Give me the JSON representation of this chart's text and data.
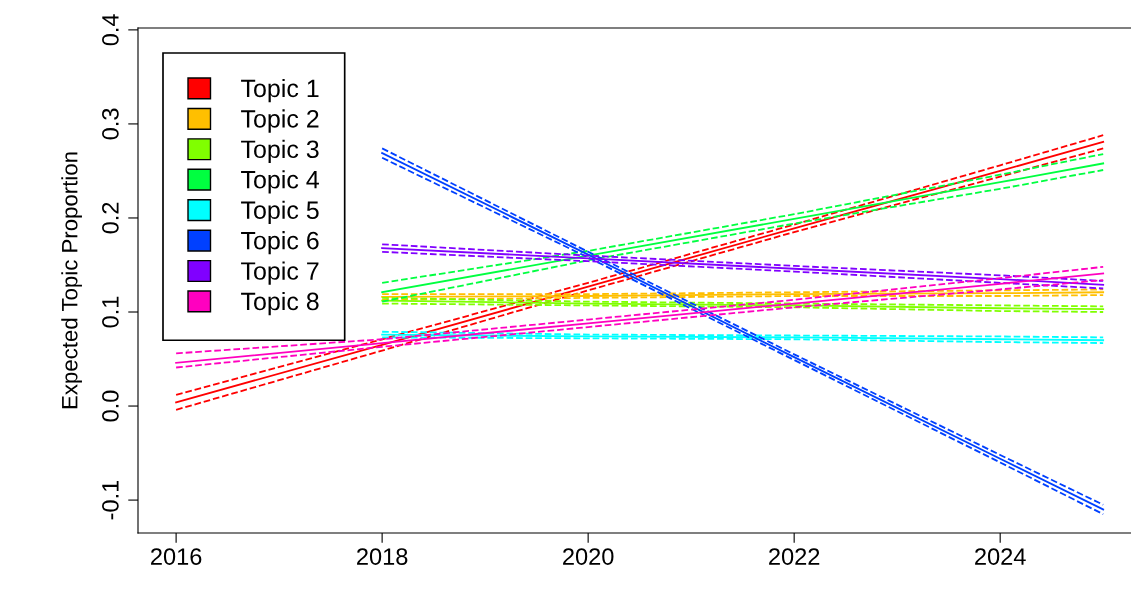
{
  "chart_data": {
    "type": "line",
    "ylabel": "Expected Topic Proportion",
    "x": [
      2016,
      2018,
      2020,
      2022,
      2024,
      2025
    ],
    "series": [
      {
        "name": "Topic 1",
        "color": "#ff0000",
        "values": [
          0.004,
          0.065,
          0.127,
          0.189,
          0.25,
          0.281
        ]
      },
      {
        "color": "#ff0000",
        "line_style": "dashed",
        "values": [
          -0.004,
          0.059,
          0.123,
          0.185,
          0.244,
          0.274
        ]
      },
      {
        "color": "#ff0000",
        "line_style": "dashed",
        "values": [
          0.012,
          0.071,
          0.131,
          0.193,
          0.256,
          0.288
        ]
      },
      {
        "name": "Topic 2",
        "color": "#ffbf00",
        "values": [
          null,
          0.116,
          0.117,
          0.119,
          0.12,
          0.121
        ]
      },
      {
        "color": "#ffbf00",
        "line_style": "dashed",
        "values": [
          null,
          0.113,
          0.115,
          0.117,
          0.117,
          0.118
        ]
      },
      {
        "color": "#ffbf00",
        "line_style": "dashed",
        "values": [
          null,
          0.119,
          0.119,
          0.121,
          0.123,
          0.124
        ]
      },
      {
        "name": "Topic 3",
        "color": "#80ff00",
        "values": [
          null,
          0.112,
          0.109,
          0.107,
          0.104,
          0.103
        ]
      },
      {
        "color": "#80ff00",
        "line_style": "dashed",
        "values": [
          null,
          0.109,
          0.107,
          0.105,
          0.101,
          0.1
        ]
      },
      {
        "color": "#80ff00",
        "line_style": "dashed",
        "values": [
          null,
          0.115,
          0.111,
          0.109,
          0.107,
          0.106
        ]
      },
      {
        "name": "Topic 4",
        "color": "#00ff40",
        "values": [
          null,
          0.121,
          0.16,
          0.199,
          0.238,
          0.258
        ]
      },
      {
        "color": "#00ff40",
        "line_style": "dashed",
        "values": [
          null,
          0.111,
          0.155,
          0.194,
          0.231,
          0.251
        ]
      },
      {
        "color": "#00ff40",
        "line_style": "dashed",
        "values": [
          null,
          0.131,
          0.165,
          0.204,
          0.246,
          0.268
        ]
      },
      {
        "name": "Topic 5",
        "color": "#00ffff",
        "values": [
          null,
          0.076,
          0.074,
          0.073,
          0.071,
          0.07
        ]
      },
      {
        "color": "#00ffff",
        "line_style": "dashed",
        "values": [
          null,
          0.073,
          0.072,
          0.071,
          0.068,
          0.067
        ]
      },
      {
        "color": "#00ffff",
        "line_style": "dashed",
        "values": [
          null,
          0.079,
          0.076,
          0.075,
          0.074,
          0.073
        ]
      },
      {
        "name": "Topic 6",
        "color": "#0040ff",
        "values": [
          null,
          0.269,
          0.161,
          0.052,
          -0.056,
          -0.11
        ]
      },
      {
        "color": "#0040ff",
        "line_style": "dashed",
        "values": [
          null,
          0.264,
          0.158,
          0.049,
          -0.06,
          -0.115
        ]
      },
      {
        "color": "#0040ff",
        "line_style": "dashed",
        "values": [
          null,
          0.274,
          0.164,
          0.055,
          -0.052,
          -0.105
        ]
      },
      {
        "name": "Topic 7",
        "color": "#8000ff",
        "values": [
          null,
          0.168,
          0.157,
          0.146,
          0.135,
          0.129
        ]
      },
      {
        "color": "#8000ff",
        "line_style": "dashed",
        "values": [
          null,
          0.164,
          0.154,
          0.143,
          0.131,
          0.125
        ]
      },
      {
        "color": "#8000ff",
        "line_style": "dashed",
        "values": [
          null,
          0.172,
          0.16,
          0.149,
          0.139,
          0.133
        ]
      },
      {
        "name": "Topic 8",
        "color": "#ff00bf",
        "values": [
          0.046,
          0.067,
          0.088,
          0.109,
          0.13,
          0.141
        ]
      },
      {
        "color": "#ff00bf",
        "line_style": "dashed",
        "values": [
          0.041,
          0.063,
          0.084,
          0.105,
          0.124,
          0.134
        ]
      },
      {
        "color": "#ff00bf",
        "line_style": "dashed",
        "values": [
          0.056,
          0.071,
          0.092,
          0.113,
          0.136,
          0.148
        ]
      }
    ],
    "xlim": [
      2015.63,
      2025.27
    ],
    "ylim": [
      -0.135,
      0.402
    ],
    "xticks": [
      2016,
      2018,
      2020,
      2022,
      2024
    ],
    "yticks": [
      {
        "value": -0.1,
        "label": "-0.1"
      },
      {
        "value": 0.0,
        "label": "0.0"
      },
      {
        "value": 0.1,
        "label": "0.1"
      },
      {
        "value": 0.2,
        "label": "0.2"
      },
      {
        "value": 0.3,
        "label": "0.3"
      },
      {
        "value": 0.4,
        "label": "0.4"
      }
    ],
    "grid": false,
    "legend": "top left",
    "marker": "none",
    "line_style": "solid"
  }
}
